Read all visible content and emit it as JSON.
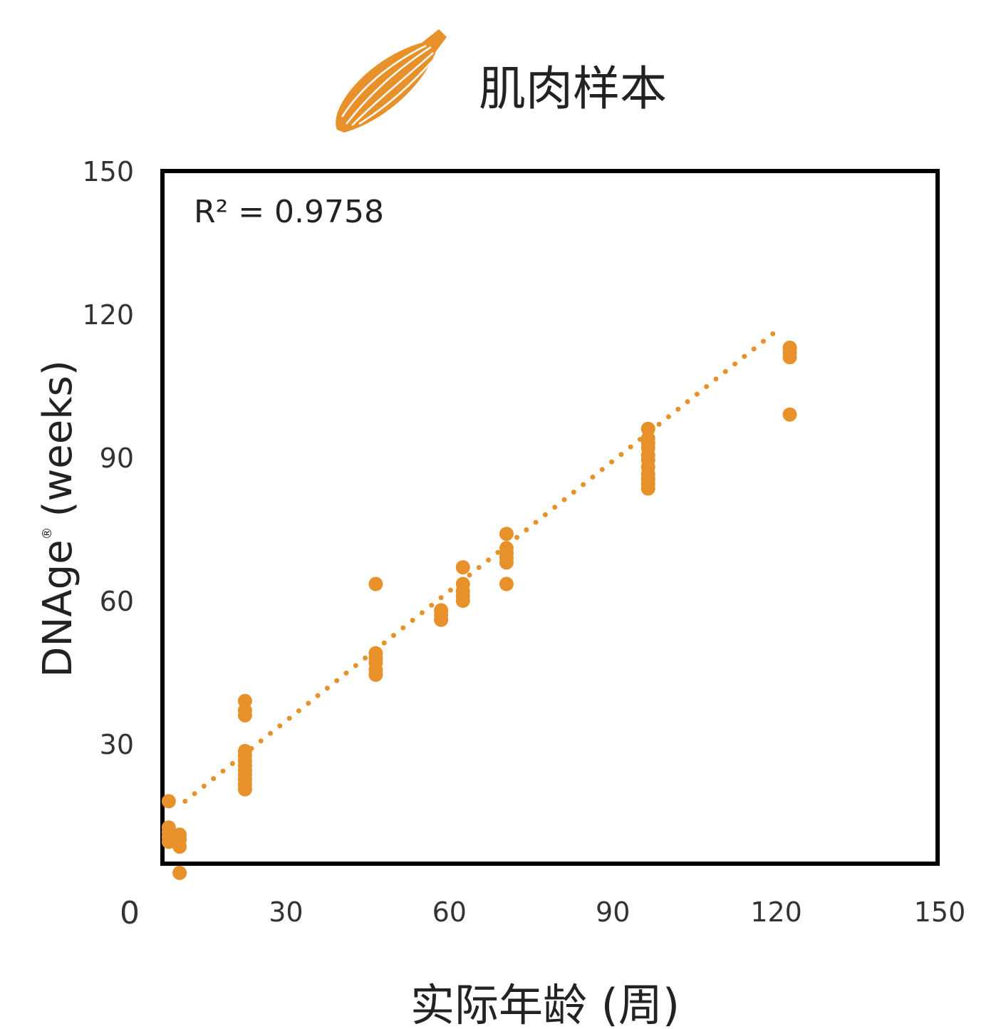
{
  "title": "肌肉样本",
  "icon": "muscle-icon",
  "colors": {
    "accent": "#E8912A",
    "frame": "#000000"
  },
  "chart_data": {
    "type": "scatter",
    "title": "肌肉样本",
    "xlabel": "实际年龄 (周)",
    "ylabel": "DNAge",
    "ylabel_mark": "®",
    "ylabel_unit": "(weeks)",
    "xlim": [
      0,
      150
    ],
    "ylim": [
      0,
      150
    ],
    "x_ticks": [
      30,
      60,
      90,
      120,
      150
    ],
    "y_ticks": [
      30,
      60,
      90,
      120,
      150
    ],
    "origin_label": "0",
    "grid": false,
    "annotation": "R² = 0.9758",
    "trendline": {
      "style": "dotted",
      "x": [
        12,
        120
      ],
      "y": [
        18,
        116
      ]
    },
    "points": [
      [
        9,
        18
      ],
      [
        9,
        12.5
      ],
      [
        9,
        11.5
      ],
      [
        9,
        10.5
      ],
      [
        9,
        9.5
      ],
      [
        11,
        11
      ],
      [
        11,
        10
      ],
      [
        11,
        8.5
      ],
      [
        11,
        3
      ],
      [
        23,
        39
      ],
      [
        23,
        37
      ],
      [
        23,
        36
      ],
      [
        23,
        28.5
      ],
      [
        23,
        27.5
      ],
      [
        23,
        26.5
      ],
      [
        23,
        25.5
      ],
      [
        23,
        24.5
      ],
      [
        23,
        23.5
      ],
      [
        23,
        22.5
      ],
      [
        23,
        21.5
      ],
      [
        23,
        20.5
      ],
      [
        47,
        63.5
      ],
      [
        47,
        49
      ],
      [
        47,
        48
      ],
      [
        47,
        47
      ],
      [
        47,
        45.5
      ],
      [
        47,
        44.5
      ],
      [
        59,
        58
      ],
      [
        59,
        57
      ],
      [
        59,
        56
      ],
      [
        63,
        63.5
      ],
      [
        63,
        62
      ],
      [
        63,
        61
      ],
      [
        63,
        60
      ],
      [
        63,
        67
      ],
      [
        71,
        74
      ],
      [
        71,
        71
      ],
      [
        71,
        70
      ],
      [
        71,
        69
      ],
      [
        71,
        68
      ],
      [
        71,
        63.5
      ],
      [
        97,
        96
      ],
      [
        97,
        94
      ],
      [
        97,
        93
      ],
      [
        97,
        92
      ],
      [
        97,
        90.5
      ],
      [
        97,
        89.5
      ],
      [
        97,
        88
      ],
      [
        97,
        86.5
      ],
      [
        97,
        85.5
      ],
      [
        97,
        84.5
      ],
      [
        97,
        83.5
      ],
      [
        123,
        113
      ],
      [
        123,
        112
      ],
      [
        123,
        111
      ],
      [
        123,
        99
      ]
    ]
  }
}
